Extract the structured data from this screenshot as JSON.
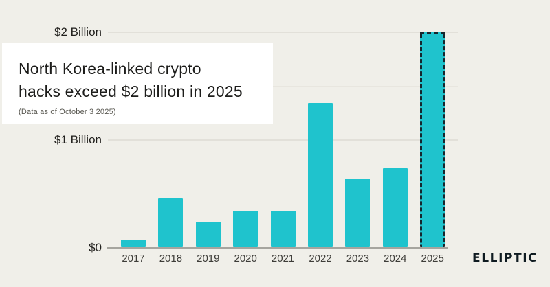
{
  "title_card": {
    "title_line1": "North Korea-linked crypto",
    "title_line2": "hacks exceed $2 billion in 2025",
    "subtitle": "(Data as of October 3 2025)"
  },
  "branding": {
    "logo_text": "ELLIPTIC"
  },
  "colors": {
    "background": "#f0efe9",
    "card": "#ffffff",
    "bar": "#1fc3cd",
    "highlight_border": "#16262d",
    "gridline": "#e2e0d9",
    "axis": "#a6a59f",
    "text": "#1d1d1b"
  },
  "chart_data": {
    "type": "bar",
    "title": "North Korea-linked crypto hacks exceed $2 billion in 2025",
    "subtitle": "(Data as of October 3 2025)",
    "unit": "USD millions",
    "categories": [
      "2017",
      "2018",
      "2019",
      "2020",
      "2021",
      "2022",
      "2023",
      "2024",
      "2025"
    ],
    "values_usd_millions": [
      70,
      450,
      235,
      335,
      335,
      1340,
      640,
      735,
      2000
    ],
    "y_ticks": [
      {
        "label": "$0",
        "billions": 0
      },
      {
        "label": "$1 Billion",
        "billions": 1
      },
      {
        "label": "$2 Billion",
        "billions": 2
      }
    ],
    "gridlines_billions": [
      0.5,
      1,
      1.5,
      2
    ],
    "ylim_billions": [
      0,
      2.1
    ],
    "grid": true,
    "legend": false,
    "highlighted_category": "2025",
    "highlight_style": "dashed-border"
  }
}
